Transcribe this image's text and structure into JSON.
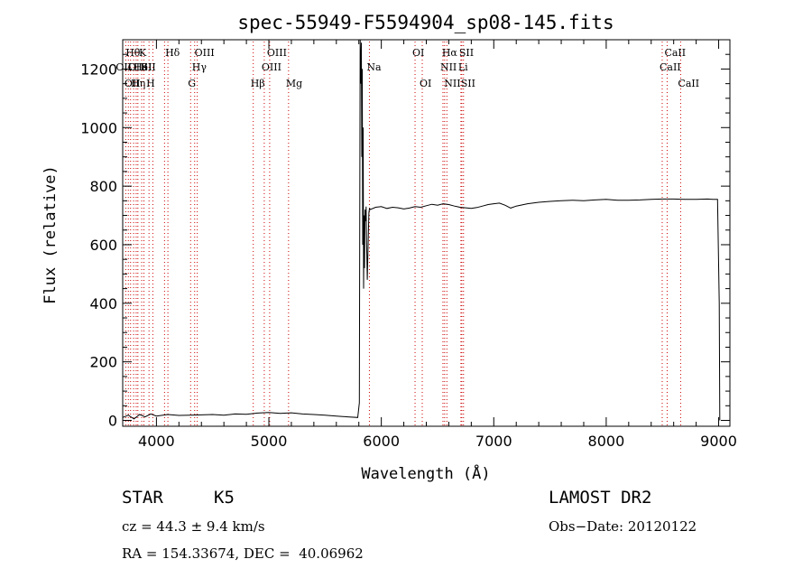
{
  "chart_data": {
    "type": "line",
    "title": "spec-55949-F5594904_sp08-145.fits",
    "xlabel": "Wavelength (Å)",
    "ylabel": "Flux (relative)",
    "xlim": [
      3700,
      9100
    ],
    "ylim": [
      -20,
      1300
    ],
    "x_ticks": [
      4000,
      5000,
      6000,
      7000,
      8000,
      9000
    ],
    "y_ticks": [
      0,
      200,
      400,
      600,
      800,
      1000,
      1200
    ],
    "grid": false,
    "series": [
      {
        "color": "#000000",
        "x": [
          3700,
          3750,
          3800,
          3850,
          3900,
          3950,
          4000,
          4100,
          4200,
          4300,
          4400,
          4500,
          4600,
          4700,
          4800,
          4900,
          5000,
          5100,
          5200,
          5300,
          5400,
          5500,
          5600,
          5700,
          5790,
          5805,
          5812,
          5818,
          5822,
          5826,
          5830,
          5834,
          5838,
          5842,
          5846,
          5850,
          5855,
          5860,
          5865,
          5870,
          5875,
          5880,
          5885,
          5890,
          5895,
          5900,
          5950,
          6000,
          6050,
          6100,
          6150,
          6200,
          6250,
          6300,
          6350,
          6400,
          6450,
          6500,
          6550,
          6600,
          6650,
          6700,
          6750,
          6800,
          6850,
          6900,
          6950,
          7000,
          7050,
          7100,
          7150,
          7200,
          7300,
          7400,
          7500,
          7600,
          7700,
          7800,
          7900,
          8000,
          8100,
          8200,
          8300,
          8400,
          8500,
          8600,
          8700,
          8800,
          8900,
          8950,
          8990,
          9005,
          9010
        ],
        "y": [
          10,
          18,
          5,
          20,
          12,
          22,
          15,
          20,
          17,
          18,
          19,
          20,
          18,
          22,
          21,
          25,
          27,
          24,
          26,
          22,
          20,
          18,
          15,
          12,
          10,
          60,
          1300,
          1150,
          1290,
          900,
          1200,
          600,
          1000,
          450,
          700,
          520,
          720,
          680,
          730,
          600,
          480,
          560,
          640,
          710,
          725,
          720,
          728,
          730,
          724,
          728,
          726,
          722,
          725,
          730,
          728,
          733,
          738,
          735,
          740,
          737,
          732,
          728,
          726,
          724,
          727,
          732,
          737,
          740,
          742,
          735,
          725,
          732,
          740,
          745,
          748,
          750,
          752,
          750,
          753,
          755,
          752,
          752,
          753,
          755,
          756,
          756,
          755,
          755,
          756,
          755,
          755,
          400,
          0
        ]
      }
    ],
    "emission_lines": [
      {
        "wl": 3727,
        "label": "OII",
        "row": 2,
        "offset": -8
      },
      {
        "wl": 3750,
        "label": "Hθ",
        "row": 1,
        "offset": 0
      },
      {
        "wl": 3770,
        "label": "OIII",
        "row": 2,
        "offset": 0
      },
      {
        "wl": 3797,
        "label": "Hη",
        "row": 3,
        "offset": 0
      },
      {
        "wl": 3820,
        "label": "HeI",
        "row": 2,
        "offset": 0
      },
      {
        "wl": 3835,
        "label": "OII",
        "row": 3,
        "offset": -12
      },
      {
        "wl": 3869,
        "label": "K",
        "row": 1,
        "offset": 0
      },
      {
        "wl": 3889,
        "label": "SII",
        "row": 2,
        "offset": 0
      },
      {
        "wl": 3934,
        "label": "H",
        "row": 3,
        "offset": 0
      },
      {
        "wl": 3968,
        "label": "",
        "row": 0,
        "offset": 0
      },
      {
        "wl": 4072,
        "label": "",
        "row": 0,
        "offset": 0
      },
      {
        "wl": 4102,
        "label": "Hδ",
        "row": 1,
        "offset": 0
      },
      {
        "wl": 4304,
        "label": "G",
        "row": 3,
        "offset": 0
      },
      {
        "wl": 4340,
        "label": "Hγ",
        "row": 2,
        "offset": 0
      },
      {
        "wl": 4363,
        "label": "OIII",
        "row": 1,
        "offset": 0
      },
      {
        "wl": 4861,
        "label": "Hβ",
        "row": 3,
        "offset": 0
      },
      {
        "wl": 4959,
        "label": "OIII",
        "row": 2,
        "offset": 0
      },
      {
        "wl": 5007,
        "label": "OIII",
        "row": 1,
        "offset": 0
      },
      {
        "wl": 5175,
        "label": "Mg",
        "row": 3,
        "offset": 0
      },
      {
        "wl": 5894,
        "label": "Na",
        "row": 2,
        "offset": 0
      },
      {
        "wl": 6300,
        "label": "OI",
        "row": 1,
        "offset": 0
      },
      {
        "wl": 6364,
        "label": "OI",
        "row": 3,
        "offset": 0
      },
      {
        "wl": 6548,
        "label": "NII",
        "row": 2,
        "offset": 0
      },
      {
        "wl": 6563,
        "label": "Hα",
        "row": 1,
        "offset": 0
      },
      {
        "wl": 6583,
        "label": "NII",
        "row": 3,
        "offset": 0
      },
      {
        "wl": 6708,
        "label": "Li",
        "row": 2,
        "offset": 0
      },
      {
        "wl": 6716,
        "label": "SII",
        "row": 1,
        "offset": 0
      },
      {
        "wl": 6731,
        "label": "SII",
        "row": 3,
        "offset": 0
      },
      {
        "wl": 8498,
        "label": "CaII",
        "row": 2,
        "offset": 0
      },
      {
        "wl": 8542,
        "label": "CaII",
        "row": 1,
        "offset": 0
      },
      {
        "wl": 8662,
        "label": "CaII",
        "row": 3,
        "offset": 0
      }
    ],
    "line_color": "#cc0000"
  },
  "info": {
    "class_type": "STAR",
    "subclass": "K5",
    "survey": "LAMOST DR2",
    "cz": "cz = 44.3 ± 9.4 km/s",
    "obs_date": "Obs−Date: 20120122",
    "coords": "RA = 154.33674, DEC =  40.06962"
  }
}
